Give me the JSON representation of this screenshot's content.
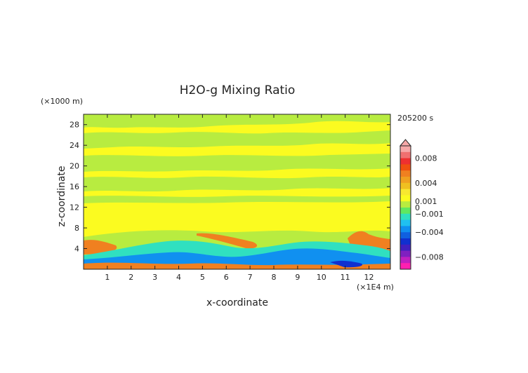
{
  "chart_data": {
    "type": "heatmap",
    "title": "H2O-g Mixing Ratio",
    "xlabel": "x-coordinate",
    "ylabel": "z-coordinate",
    "x_unit": "(×1E4 m)",
    "y_unit": "(×1000 m)",
    "time_label": "205200 s",
    "xlim": [
      0,
      12.9
    ],
    "ylim": [
      0,
      30
    ],
    "x_ticks": [
      1,
      2,
      3,
      4,
      5,
      6,
      7,
      8,
      9,
      10,
      11,
      12
    ],
    "y_ticks": [
      4,
      8,
      12,
      16,
      20,
      24,
      28
    ],
    "colorbar": {
      "labels": [
        "0.008",
        "0.004",
        "0.001",
        "0",
        "−0.001",
        "−0.004",
        "−0.008"
      ],
      "label_values": [
        0.008,
        0.004,
        0.001,
        0,
        -0.001,
        -0.004,
        -0.008
      ],
      "range": [
        -0.01,
        0.01
      ],
      "colors_top_to_bottom": [
        "#f6a8a8",
        "#f07070",
        "#ee3030",
        "#f05010",
        "#f08020",
        "#f0a020",
        "#f0c020",
        "#f8e830",
        "#fbfb20",
        "#b8ec40",
        "#60e860",
        "#30e0c0",
        "#20c0f0",
        "#1090f0",
        "#1060e0",
        "#1030d0",
        "#4020c0",
        "#8020c0",
        "#c020c0",
        "#ff20b0"
      ]
    },
    "bands": [
      {
        "name": "background",
        "value": 0.0002,
        "color": "#fbfb20"
      },
      {
        "name": "upper-layers",
        "value": -0.0004,
        "color": "#b8ec40"
      },
      {
        "name": "low-level-moist",
        "value": 0.003,
        "color": "#f08020"
      },
      {
        "name": "low-level-dry",
        "value": -0.002,
        "color": "#30e0c0"
      },
      {
        "name": "low-level-very-dry",
        "value": -0.004,
        "color": "#1090f0"
      }
    ]
  }
}
